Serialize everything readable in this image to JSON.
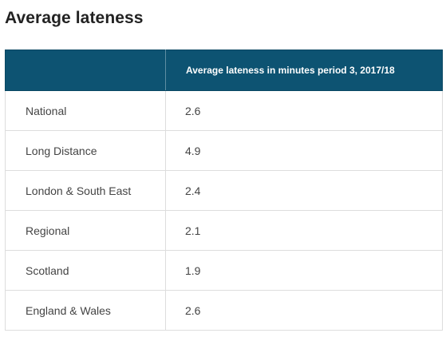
{
  "title": "Average lateness",
  "table": {
    "headers": [
      "",
      "Average lateness in minutes period 3, 2017/18"
    ],
    "rows": [
      {
        "sector": "National",
        "value": "2.6"
      },
      {
        "sector": "Long Distance",
        "value": "4.9"
      },
      {
        "sector": "London & South East",
        "value": "2.4"
      },
      {
        "sector": "Regional",
        "value": "2.1"
      },
      {
        "sector": "Scotland",
        "value": "1.9"
      },
      {
        "sector": "England & Wales",
        "value": "2.6"
      }
    ]
  },
  "colors": {
    "header_bg": "#0d5372",
    "header_text": "#ffffff",
    "border": "#dddddd"
  }
}
